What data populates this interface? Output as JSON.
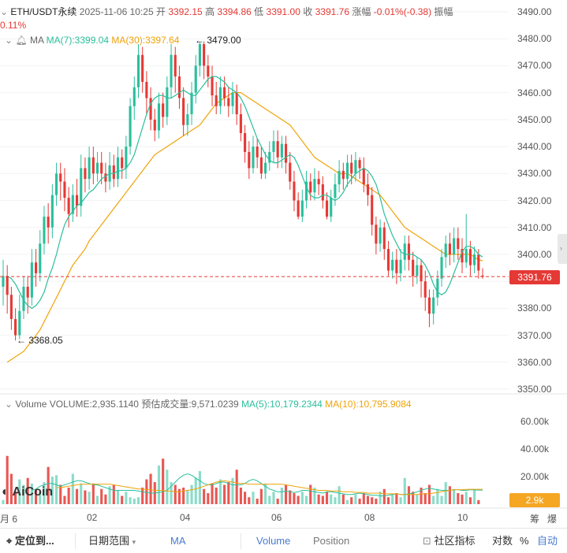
{
  "header": {
    "symbol": "ETH/USDT永续",
    "datetime": "2025-11-06 10:25",
    "open_label": "开",
    "open": "3392.15",
    "high_label": "高",
    "high": "3394.86",
    "low_label": "低",
    "low": "3391.00",
    "close_label": "收",
    "close": "3391.76",
    "change_label": "涨幅",
    "change": "-0.01%(-0.38)",
    "amplitude_label": "振幅",
    "amplitude": "0.11%"
  },
  "ma_legend": {
    "label": "MA",
    "ma7": "MA(7):3399.04",
    "ma30": "MA(30):3397.64"
  },
  "vol_legend": {
    "label": "Volume",
    "volume": "VOLUME:2,935.1140",
    "estimated": "预估成交量:9,571.0239",
    "ma5": "MA(5):10,179.2344",
    "ma10": "MA(10):10,795.9084"
  },
  "annotations": {
    "high_marker": "← 3479.00",
    "low_marker": "← 3368.05"
  },
  "price_tag": "3391.76",
  "volume_tag": "2.9k",
  "logo": "AiCoin",
  "y_axis_price": [
    "3490.00",
    "3480.00",
    "3470.00",
    "3460.00",
    "3450.00",
    "3440.00",
    "3430.00",
    "3420.00",
    "3410.00",
    "3400.00",
    "3390.00",
    "3380.00",
    "3370.00",
    "3360.00",
    "3350.00"
  ],
  "y_axis_volume": [
    "60.00k",
    "40.00k",
    "20.00k"
  ],
  "x_axis": [
    "月 6",
    "02",
    "04",
    "06",
    "08",
    "10"
  ],
  "axis_corner": [
    "筹",
    "爆"
  ],
  "toolbar": {
    "position_label": "定位到...",
    "date_range": "日期范围",
    "ma": "MA",
    "volume": "Volume",
    "position": "Position",
    "indicators": "社区指标",
    "log": "对数",
    "percent": "%",
    "auto": "自动"
  },
  "colors": {
    "up": "#2bbf9c",
    "down": "#e53935",
    "ma7": "#2bbf9c",
    "ma30": "#f0a30a",
    "price_line": "#e53935"
  },
  "chart_data": {
    "type": "candlestick",
    "price_range": [
      3350,
      3490
    ],
    "volume_range": [
      0,
      60000
    ],
    "last_price": 3391.76,
    "ohlc": [
      [
        3388,
        3392,
        3381,
        3398
      ],
      [
        3392,
        3385,
        3378,
        3396
      ],
      [
        3385,
        3376,
        3372,
        3388
      ],
      [
        3376,
        3370,
        3368.05,
        3380
      ],
      [
        3370,
        3379,
        3368.5,
        3385
      ],
      [
        3379,
        3388,
        3376,
        3392
      ],
      [
        3388,
        3384,
        3378,
        3392
      ],
      [
        3384,
        3397,
        3381,
        3402
      ],
      [
        3397,
        3393,
        3388,
        3402
      ],
      [
        3393,
        3404,
        3390,
        3409
      ],
      [
        3404,
        3414,
        3400,
        3418
      ],
      [
        3414,
        3410,
        3404,
        3419
      ],
      [
        3410,
        3422,
        3406,
        3426
      ],
      [
        3422,
        3430,
        3418,
        3434
      ],
      [
        3430,
        3427,
        3420,
        3434
      ],
      [
        3427,
        3421,
        3416,
        3432
      ],
      [
        3421,
        3415,
        3410,
        3425
      ],
      [
        3415,
        3422,
        3412,
        3426
      ],
      [
        3422,
        3418,
        3414,
        3428
      ],
      [
        3418,
        3432,
        3414,
        3437
      ],
      [
        3432,
        3428,
        3423,
        3436
      ],
      [
        3428,
        3436,
        3424,
        3440
      ],
      [
        3436,
        3430,
        3426,
        3440
      ],
      [
        3430,
        3434,
        3427,
        3438
      ],
      [
        3434,
        3430,
        3426,
        3438
      ],
      [
        3430,
        3427,
        3423,
        3434
      ],
      [
        3427,
        3433,
        3424,
        3438
      ],
      [
        3433,
        3428,
        3425,
        3437
      ],
      [
        3428,
        3436,
        3425,
        3440
      ],
      [
        3436,
        3432,
        3428,
        3439
      ],
      [
        3432,
        3440,
        3428,
        3444
      ],
      [
        3440,
        3455,
        3437,
        3458
      ],
      [
        3455,
        3462,
        3450,
        3466
      ],
      [
        3462,
        3474,
        3458,
        3478
      ],
      [
        3474,
        3464,
        3460,
        3477
      ],
      [
        3464,
        3458,
        3452,
        3468
      ],
      [
        3458,
        3450,
        3446,
        3462
      ],
      [
        3450,
        3446,
        3442,
        3454
      ],
      [
        3446,
        3456,
        3443,
        3460
      ],
      [
        3456,
        3451,
        3447,
        3460
      ],
      [
        3451,
        3462,
        3448,
        3466
      ],
      [
        3462,
        3474,
        3458,
        3478
      ],
      [
        3474,
        3466,
        3460,
        3477
      ],
      [
        3466,
        3458,
        3454,
        3470
      ],
      [
        3458,
        3448,
        3444,
        3462
      ],
      [
        3448,
        3452,
        3444,
        3456
      ],
      [
        3452,
        3460,
        3448,
        3464
      ],
      [
        3460,
        3470,
        3456,
        3474
      ],
      [
        3470,
        3478,
        3466,
        3479
      ],
      [
        3478,
        3470,
        3465,
        3479
      ],
      [
        3470,
        3466,
        3462,
        3474
      ],
      [
        3466,
        3459,
        3455,
        3470
      ],
      [
        3459,
        3455,
        3452,
        3464
      ],
      [
        3455,
        3462,
        3452,
        3466
      ],
      [
        3462,
        3458,
        3455,
        3466
      ],
      [
        3458,
        3455,
        3451,
        3462
      ],
      [
        3455,
        3460,
        3452,
        3464
      ],
      [
        3460,
        3452,
        3448,
        3463
      ],
      [
        3452,
        3445,
        3442,
        3456
      ],
      [
        3445,
        3438,
        3434,
        3448
      ],
      [
        3438,
        3432,
        3428,
        3442
      ],
      [
        3432,
        3440,
        3430,
        3444
      ],
      [
        3440,
        3436,
        3432,
        3443
      ],
      [
        3436,
        3430,
        3428,
        3440
      ],
      [
        3430,
        3434,
        3428,
        3438
      ],
      [
        3434,
        3438,
        3431,
        3442
      ],
      [
        3438,
        3442,
        3434,
        3446
      ],
      [
        3442,
        3436,
        3432,
        3446
      ],
      [
        3436,
        3441,
        3432,
        3444
      ],
      [
        3441,
        3434,
        3430,
        3444
      ],
      [
        3434,
        3427,
        3424,
        3438
      ],
      [
        3427,
        3420,
        3416,
        3431
      ],
      [
        3420,
        3414,
        3413,
        3423
      ],
      [
        3414,
        3420,
        3412,
        3424
      ],
      [
        3420,
        3427,
        3417,
        3431
      ],
      [
        3427,
        3423,
        3420,
        3430
      ],
      [
        3423,
        3428,
        3420,
        3432
      ],
      [
        3428,
        3426,
        3422,
        3431
      ],
      [
        3426,
        3420,
        3417,
        3429
      ],
      [
        3420,
        3414,
        3413,
        3423
      ],
      [
        3414,
        3421,
        3412,
        3424
      ],
      [
        3421,
        3426,
        3418,
        3430
      ],
      [
        3426,
        3431,
        3423,
        3435
      ],
      [
        3431,
        3428,
        3424,
        3434
      ],
      [
        3428,
        3434,
        3425,
        3437
      ],
      [
        3434,
        3430,
        3426,
        3437
      ],
      [
        3430,
        3435,
        3427,
        3438
      ],
      [
        3435,
        3432,
        3428,
        3436
      ],
      [
        3432,
        3426,
        3423,
        3436
      ],
      [
        3426,
        3422,
        3418,
        3430
      ],
      [
        3422,
        3411,
        3407,
        3425
      ],
      [
        3411,
        3404,
        3400,
        3414
      ],
      [
        3404,
        3410,
        3401,
        3413
      ],
      [
        3410,
        3402,
        3398,
        3412
      ],
      [
        3402,
        3394,
        3392,
        3405
      ],
      [
        3394,
        3398,
        3391,
        3401
      ],
      [
        3398,
        3393,
        3389,
        3402
      ],
      [
        3393,
        3398,
        3390,
        3402
      ],
      [
        3398,
        3404,
        3394,
        3407
      ],
      [
        3404,
        3398,
        3394,
        3407
      ],
      [
        3398,
        3392,
        3388,
        3401
      ],
      [
        3392,
        3396,
        3389,
        3399
      ],
      [
        3396,
        3390,
        3384,
        3398
      ],
      [
        3390,
        3384,
        3379,
        3394
      ],
      [
        3384,
        3378,
        3373,
        3387
      ],
      [
        3378,
        3384,
        3374,
        3387
      ],
      [
        3384,
        3391,
        3381,
        3394
      ],
      [
        3391,
        3399,
        3388,
        3402
      ],
      [
        3399,
        3404,
        3395,
        3407
      ],
      [
        3404,
        3400,
        3396,
        3408
      ],
      [
        3400,
        3406,
        3397,
        3410
      ],
      [
        3406,
        3402,
        3398,
        3410
      ],
      [
        3402,
        3397,
        3393,
        3406
      ],
      [
        3397,
        3402,
        3395,
        3415
      ],
      [
        3402,
        3396,
        3392,
        3405
      ],
      [
        3396,
        3400,
        3393,
        3403
      ],
      [
        3400,
        3394,
        3391,
        3402
      ],
      [
        3392.15,
        3391.76,
        3391,
        3394.86
      ]
    ],
    "ma7": [
      3392,
      3391,
      3389,
      3386,
      3383,
      3381,
      3380,
      3381,
      3383,
      3386,
      3391,
      3395,
      3400,
      3406,
      3411,
      3414,
      3416,
      3418,
      3419,
      3421,
      3423,
      3424,
      3426,
      3428,
      3429,
      3430,
      3430,
      3431,
      3431,
      3432,
      3434,
      3437,
      3442,
      3447,
      3452,
      3456,
      3458,
      3459,
      3459,
      3458,
      3458,
      3459,
      3460,
      3461,
      3460,
      3459,
      3459,
      3461,
      3463,
      3465,
      3466,
      3466,
      3465,
      3464,
      3462,
      3461,
      3460,
      3458,
      3455,
      3451,
      3447,
      3443,
      3440,
      3437,
      3435,
      3434,
      3434,
      3435,
      3436,
      3437,
      3436,
      3433,
      3429,
      3425,
      3422,
      3421,
      3421,
      3422,
      3422,
      3421,
      3420,
      3421,
      3423,
      3426,
      3428,
      3430,
      3431,
      3432,
      3431,
      3429,
      3426,
      3421,
      3415,
      3411,
      3407,
      3404,
      3401,
      3400,
      3400,
      3400,
      3399,
      3398,
      3396,
      3393,
      3389,
      3386,
      3385,
      3386,
      3389,
      3393,
      3397,
      3401,
      3403,
      3403,
      3402,
      3400,
      3399.04
    ],
    "ma30": [
      3360,
      3361,
      3362,
      3363,
      3364,
      3366,
      3368,
      3370,
      3372,
      3375,
      3378,
      3381,
      3384,
      3387,
      3390,
      3393,
      3396,
      3398,
      3400,
      3402,
      3405,
      3407,
      3409,
      3411,
      3413,
      3415,
      3417,
      3419,
      3421,
      3423,
      3425,
      3427,
      3429,
      3431,
      3433,
      3435,
      3437,
      3438,
      3439,
      3440,
      3441,
      3442,
      3443,
      3444,
      3445,
      3446,
      3447,
      3448,
      3450,
      3452,
      3454,
      3456,
      3457,
      3458,
      3459,
      3460,
      3460,
      3460,
      3459,
      3458,
      3457,
      3456,
      3455,
      3454,
      3453,
      3452,
      3451,
      3450,
      3449,
      3448,
      3446,
      3444,
      3442,
      3440,
      3438,
      3436,
      3435,
      3434,
      3433,
      3432,
      3431,
      3430,
      3430,
      3430,
      3429,
      3428,
      3427,
      3426,
      3425,
      3424,
      3423,
      3422,
      3420,
      3418,
      3416,
      3414,
      3412,
      3410,
      3409,
      3408,
      3407,
      3406,
      3405,
      3404,
      3403,
      3402,
      3401,
      3400,
      3400,
      3400,
      3400,
      3400,
      3400,
      3400,
      3399,
      3398,
      3397.64
    ],
    "volume": [
      3000,
      35000,
      22000,
      9000,
      18000,
      14000,
      19000,
      15000,
      11000,
      9000,
      16000,
      27000,
      20000,
      21000,
      14000,
      6000,
      12000,
      22000,
      11000,
      15000,
      10000,
      9000,
      15000,
      6000,
      11000,
      7000,
      13000,
      14000,
      10000,
      6000,
      9000,
      5000,
      4000,
      5000,
      12000,
      18000,
      22000,
      16000,
      28000,
      33000,
      25000,
      16000,
      14000,
      11000,
      12000,
      10000,
      14000,
      19000,
      24000,
      11000,
      8000,
      15000,
      12000,
      18000,
      14000,
      16000,
      19000,
      25000,
      12000,
      9000,
      5000,
      9000,
      4000,
      11000,
      15000,
      6000,
      9000,
      4000,
      12000,
      14000,
      10000,
      8000,
      6000,
      9000,
      6000,
      14000,
      12000,
      7000,
      6000,
      9000,
      7000,
      5000,
      13000,
      7000,
      3000,
      5000,
      7000,
      4000,
      8000,
      6000,
      5000,
      4000,
      9000,
      11000,
      5000,
      7000,
      8000,
      5000,
      19000,
      13000,
      9000,
      7000,
      12000,
      8000,
      14000,
      6000,
      11000,
      6000,
      16000,
      13000,
      11000,
      8000,
      7000,
      9000,
      5000,
      10000,
      2935
    ],
    "volume_ma5": [
      10000,
      11000,
      13000,
      14000,
      15000,
      15000,
      14000,
      13000,
      14000,
      15000,
      16000,
      17000,
      17000,
      16000,
      15000,
      14000,
      14000,
      13000,
      12000,
      11000,
      10000,
      10000,
      10000,
      10000,
      10000,
      10000,
      9500,
      9000,
      8500,
      8000,
      8000,
      8500,
      9000,
      10000,
      13000,
      16000,
      19000,
      21000,
      22000,
      21000,
      19000,
      17000,
      15000,
      14000,
      14000,
      15000,
      16000,
      16000,
      15000,
      14000,
      14000,
      14000,
      15000,
      17000,
      18000,
      17000,
      15000,
      13000,
      11000,
      10000,
      9000,
      9000,
      9500,
      9000,
      8500,
      9000,
      10000,
      10000,
      9500,
      9000,
      8500,
      8000,
      9000,
      9000,
      8500,
      8000,
      7500,
      7000,
      7000,
      7500,
      8000,
      7500,
      7000,
      6500,
      6500,
      6000,
      6000,
      6500,
      7000,
      7500,
      7000,
      7000,
      7500,
      8000,
      9000,
      10000,
      11000,
      11500,
      11000,
      10500,
      10000,
      10000,
      10000,
      10500,
      10500,
      10000,
      10000,
      10500,
      10300,
      10200,
      10179.2344
    ],
    "volume_ma10": [
      12000,
      12000,
      12500,
      13000,
      13500,
      14000,
      14500,
      14500,
      14500,
      14500,
      14500,
      14500,
      14500,
      14500,
      14000,
      13500,
      13000,
      12500,
      12000,
      11500,
      11000,
      11000,
      10500,
      10500,
      10000,
      10000,
      10000,
      9500,
      9500,
      9000,
      9000,
      9500,
      10000,
      10500,
      11000,
      12000,
      13000,
      14000,
      15000,
      16000,
      16500,
      17000,
      16500,
      16000,
      15500,
      15000,
      15000,
      14500,
      14500,
      14500,
      14500,
      14500,
      14500,
      14500,
      14500,
      14500,
      14000,
      13500,
      13000,
      12500,
      12000,
      11500,
      11000,
      10500,
      10000,
      10000,
      10000,
      9500,
      9500,
      9500,
      9000,
      9000,
      9000,
      8500,
      8500,
      8500,
      8000,
      8000,
      8000,
      8000,
      7500,
      7500,
      7500,
      7500,
      7000,
      7000,
      7000,
      7000,
      7000,
      7500,
      7500,
      7500,
      8000,
      8500,
      9000,
      9500,
      10000,
      10500,
      10500,
      10500,
      10700,
      10800,
      10800,
      10800,
      10795.9084
    ]
  }
}
